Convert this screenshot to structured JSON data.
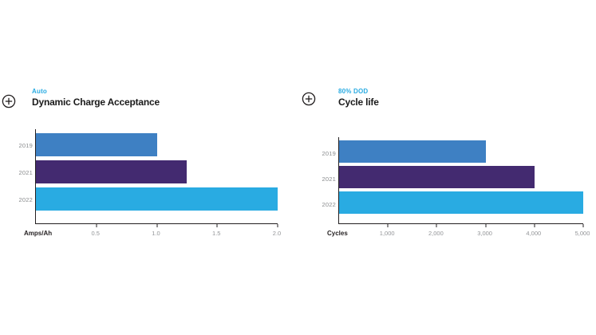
{
  "chart_data": [
    {
      "type": "bar",
      "orientation": "horizontal",
      "subtitle": "Auto",
      "title": "Dynamic Charge Acceptance",
      "xlabel": "Amps/Ah",
      "categories": [
        "2019",
        "2021",
        "2022"
      ],
      "values": [
        1.0,
        1.25,
        2.0
      ],
      "xlim": [
        0,
        2.0
      ],
      "tick_values": [
        0.5,
        1.0,
        1.5,
        2.0
      ],
      "tick_labels": [
        "0.5",
        "1.0",
        "1.5",
        "2.0"
      ],
      "bar_colors": [
        "#3E80C3",
        "#432A70",
        "#29ABE2"
      ],
      "legend": "none",
      "grid": false,
      "icon": "plus-circle-icon"
    },
    {
      "type": "bar",
      "orientation": "horizontal",
      "subtitle": "80% DOD",
      "title": "Cycle life",
      "xlabel": "Cycles",
      "categories": [
        "2019",
        "2021",
        "2022"
      ],
      "values": [
        3000,
        4000,
        5000
      ],
      "xlim": [
        0,
        5000
      ],
      "tick_values": [
        1000,
        2000,
        3000,
        4000,
        5000
      ],
      "tick_labels": [
        "1,000",
        "2,000",
        "3,000",
        "4,000",
        "5,000"
      ],
      "bar_colors": [
        "#3E80C3",
        "#432A70",
        "#29ABE2"
      ],
      "legend": "none",
      "grid": false,
      "icon": "plus-circle-icon"
    }
  ],
  "colors": {
    "background": "#FFFFFF",
    "subtitle_accent": "#29ABE2",
    "title_text": "#1A1A1A",
    "axis_line": "#231F20",
    "category_label": "#8A8C8E",
    "tick_label": "#939598",
    "bar_blue": "#3E80C3",
    "bar_purple": "#432A70",
    "bar_cyan": "#29ABE2"
  }
}
